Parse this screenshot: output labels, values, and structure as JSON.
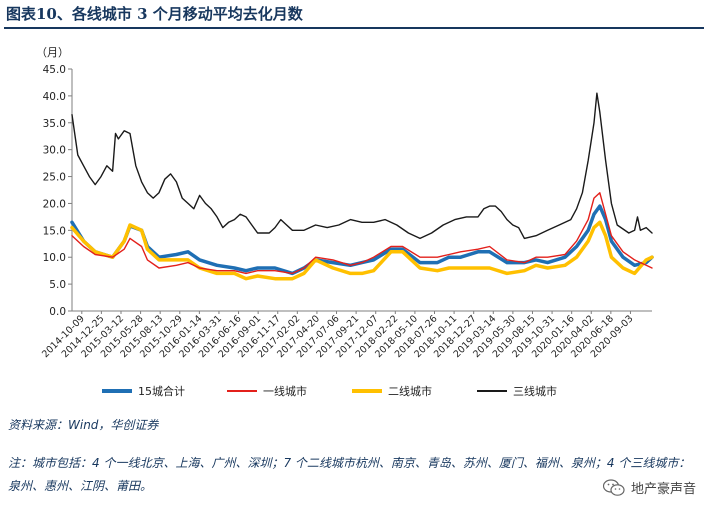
{
  "header": {
    "title": "图表10、各线城市 3 个月移动平均去化月数"
  },
  "chart_data": {
    "type": "line",
    "title": "图表10、各线城市 3 个月移动平均去化月数",
    "ylabel": "（月）",
    "xlabel": "",
    "ylim": [
      0,
      45
    ],
    "y_ticks": [
      "0.0",
      "5.0",
      "10.0",
      "15.0",
      "20.0",
      "25.0",
      "30.0",
      "35.0",
      "40.0",
      "45.0"
    ],
    "grid": false,
    "legend_position": "bottom",
    "x_start": "2014-10-09",
    "x_end": "2020-11-20",
    "x_tick_labels": [
      "2014-10-09",
      "2014-12-25",
      "2015-03-12",
      "2015-05-28",
      "2015-08-13",
      "2015-10-29",
      "2016-01-14",
      "2016-03-31",
      "2016-06-16",
      "2016-09-01",
      "2016-11-17",
      "2017-02-02",
      "2017-04-20",
      "2017-07-06",
      "2017-09-21",
      "2017-12-07",
      "2018-02-22",
      "2018-05-10",
      "2018-07-26",
      "2018-10-11",
      "2018-12-27",
      "2019-03-14",
      "2019-05-30",
      "2019-08-15",
      "2019-10-31",
      "2020-01-16",
      "2020-04-02",
      "2020-06-18",
      "2020-09-03"
    ],
    "series": [
      {
        "name": "15城合计",
        "color": "#1f6fb4",
        "width": 3.5,
        "points": [
          [
            0,
            16.5
          ],
          [
            0.02,
            13
          ],
          [
            0.04,
            11
          ],
          [
            0.07,
            10
          ],
          [
            0.09,
            13
          ],
          [
            0.1,
            15.8
          ],
          [
            0.12,
            15
          ],
          [
            0.13,
            12
          ],
          [
            0.15,
            10
          ],
          [
            0.18,
            10.5
          ],
          [
            0.2,
            11
          ],
          [
            0.22,
            9.5
          ],
          [
            0.25,
            8.5
          ],
          [
            0.28,
            8
          ],
          [
            0.3,
            7.5
          ],
          [
            0.32,
            8
          ],
          [
            0.35,
            8
          ],
          [
            0.38,
            7
          ],
          [
            0.4,
            8
          ],
          [
            0.42,
            9.5
          ],
          [
            0.45,
            9
          ],
          [
            0.48,
            8.5
          ],
          [
            0.5,
            9
          ],
          [
            0.52,
            9.5
          ],
          [
            0.55,
            11.5
          ],
          [
            0.57,
            11.5
          ],
          [
            0.6,
            9
          ],
          [
            0.63,
            9
          ],
          [
            0.65,
            10
          ],
          [
            0.67,
            10
          ],
          [
            0.7,
            11
          ],
          [
            0.72,
            11
          ],
          [
            0.75,
            9
          ],
          [
            0.78,
            9
          ],
          [
            0.8,
            9.5
          ],
          [
            0.82,
            9
          ],
          [
            0.85,
            10
          ],
          [
            0.87,
            12
          ],
          [
            0.89,
            15
          ],
          [
            0.9,
            18
          ],
          [
            0.91,
            19.5
          ],
          [
            0.92,
            17
          ],
          [
            0.93,
            13
          ],
          [
            0.95,
            10
          ],
          [
            0.97,
            8.5
          ],
          [
            0.99,
            9
          ],
          [
            1,
            10
          ]
        ]
      },
      {
        "name": "一线城市",
        "color": "#e3201b",
        "width": 1.4,
        "points": [
          [
            0,
            14
          ],
          [
            0.02,
            12
          ],
          [
            0.04,
            10.5
          ],
          [
            0.07,
            10
          ],
          [
            0.09,
            11.5
          ],
          [
            0.1,
            13.5
          ],
          [
            0.12,
            12
          ],
          [
            0.13,
            9.5
          ],
          [
            0.15,
            8
          ],
          [
            0.18,
            8.5
          ],
          [
            0.2,
            9
          ],
          [
            0.22,
            8
          ],
          [
            0.25,
            7.5
          ],
          [
            0.28,
            7.5
          ],
          [
            0.3,
            7
          ],
          [
            0.32,
            7.5
          ],
          [
            0.35,
            7.5
          ],
          [
            0.38,
            7
          ],
          [
            0.4,
            8
          ],
          [
            0.42,
            10
          ],
          [
            0.45,
            9.5
          ],
          [
            0.48,
            8.5
          ],
          [
            0.5,
            9
          ],
          [
            0.52,
            10
          ],
          [
            0.55,
            12
          ],
          [
            0.57,
            12
          ],
          [
            0.6,
            10
          ],
          [
            0.63,
            10
          ],
          [
            0.65,
            10.5
          ],
          [
            0.67,
            11
          ],
          [
            0.7,
            11.5
          ],
          [
            0.72,
            12
          ],
          [
            0.75,
            9.5
          ],
          [
            0.78,
            9
          ],
          [
            0.8,
            10
          ],
          [
            0.82,
            10
          ],
          [
            0.85,
            10.5
          ],
          [
            0.87,
            13
          ],
          [
            0.89,
            17
          ],
          [
            0.9,
            21
          ],
          [
            0.91,
            22
          ],
          [
            0.92,
            18
          ],
          [
            0.93,
            14
          ],
          [
            0.95,
            11
          ],
          [
            0.97,
            9.5
          ],
          [
            0.99,
            8.5
          ],
          [
            1,
            8
          ]
        ]
      },
      {
        "name": "二线城市",
        "color": "#ffc000",
        "width": 3.5,
        "points": [
          [
            0,
            15.5
          ],
          [
            0.02,
            13
          ],
          [
            0.04,
            11
          ],
          [
            0.07,
            10
          ],
          [
            0.09,
            13
          ],
          [
            0.1,
            16
          ],
          [
            0.12,
            15
          ],
          [
            0.13,
            11.5
          ],
          [
            0.15,
            9.5
          ],
          [
            0.18,
            9.5
          ],
          [
            0.2,
            9.5
          ],
          [
            0.22,
            8
          ],
          [
            0.25,
            7
          ],
          [
            0.28,
            7
          ],
          [
            0.3,
            6
          ],
          [
            0.32,
            6.5
          ],
          [
            0.35,
            6
          ],
          [
            0.38,
            6
          ],
          [
            0.4,
            7
          ],
          [
            0.42,
            9.5
          ],
          [
            0.45,
            8
          ],
          [
            0.48,
            7
          ],
          [
            0.5,
            7
          ],
          [
            0.52,
            7.5
          ],
          [
            0.55,
            11
          ],
          [
            0.57,
            11
          ],
          [
            0.6,
            8
          ],
          [
            0.63,
            7.5
          ],
          [
            0.65,
            8
          ],
          [
            0.67,
            8
          ],
          [
            0.7,
            8
          ],
          [
            0.72,
            8
          ],
          [
            0.75,
            7
          ],
          [
            0.78,
            7.5
          ],
          [
            0.8,
            8.5
          ],
          [
            0.82,
            8
          ],
          [
            0.85,
            8.5
          ],
          [
            0.87,
            10
          ],
          [
            0.89,
            13
          ],
          [
            0.9,
            15.5
          ],
          [
            0.91,
            16.5
          ],
          [
            0.92,
            14
          ],
          [
            0.93,
            10
          ],
          [
            0.95,
            8
          ],
          [
            0.97,
            7
          ],
          [
            0.99,
            9.5
          ],
          [
            1,
            10
          ]
        ]
      },
      {
        "name": "三线城市",
        "color": "#1a1a1a",
        "width": 1.4,
        "points": [
          [
            0,
            36.5
          ],
          [
            0.01,
            29
          ],
          [
            0.02,
            27
          ],
          [
            0.03,
            25
          ],
          [
            0.04,
            23.5
          ],
          [
            0.05,
            25
          ],
          [
            0.06,
            27
          ],
          [
            0.07,
            26
          ],
          [
            0.075,
            33
          ],
          [
            0.08,
            32
          ],
          [
            0.09,
            33.5
          ],
          [
            0.1,
            33
          ],
          [
            0.11,
            27
          ],
          [
            0.12,
            24
          ],
          [
            0.13,
            22
          ],
          [
            0.14,
            21
          ],
          [
            0.15,
            22
          ],
          [
            0.16,
            24.5
          ],
          [
            0.17,
            25.5
          ],
          [
            0.18,
            24
          ],
          [
            0.19,
            21
          ],
          [
            0.2,
            20
          ],
          [
            0.21,
            19
          ],
          [
            0.22,
            21.5
          ],
          [
            0.23,
            20
          ],
          [
            0.24,
            19
          ],
          [
            0.25,
            17.5
          ],
          [
            0.26,
            15.5
          ],
          [
            0.27,
            16.5
          ],
          [
            0.28,
            17
          ],
          [
            0.29,
            18
          ],
          [
            0.3,
            17.5
          ],
          [
            0.31,
            16
          ],
          [
            0.32,
            14.5
          ],
          [
            0.33,
            14.5
          ],
          [
            0.34,
            14.5
          ],
          [
            0.35,
            15.5
          ],
          [
            0.36,
            17
          ],
          [
            0.37,
            16
          ],
          [
            0.38,
            15
          ],
          [
            0.4,
            15
          ],
          [
            0.42,
            16
          ],
          [
            0.44,
            15.5
          ],
          [
            0.46,
            16
          ],
          [
            0.48,
            17
          ],
          [
            0.5,
            16.5
          ],
          [
            0.52,
            16.5
          ],
          [
            0.54,
            17
          ],
          [
            0.56,
            16
          ],
          [
            0.58,
            14.5
          ],
          [
            0.6,
            13.5
          ],
          [
            0.62,
            14.5
          ],
          [
            0.64,
            16
          ],
          [
            0.66,
            17
          ],
          [
            0.68,
            17.5
          ],
          [
            0.7,
            17.5
          ],
          [
            0.71,
            19
          ],
          [
            0.72,
            19.5
          ],
          [
            0.73,
            19.5
          ],
          [
            0.74,
            18.5
          ],
          [
            0.75,
            17
          ],
          [
            0.76,
            16
          ],
          [
            0.77,
            15.5
          ],
          [
            0.78,
            13.5
          ],
          [
            0.8,
            14
          ],
          [
            0.82,
            15
          ],
          [
            0.84,
            16
          ],
          [
            0.86,
            17
          ],
          [
            0.87,
            19
          ],
          [
            0.88,
            22
          ],
          [
            0.89,
            28
          ],
          [
            0.9,
            35
          ],
          [
            0.905,
            40.5
          ],
          [
            0.91,
            37
          ],
          [
            0.92,
            28
          ],
          [
            0.93,
            20
          ],
          [
            0.94,
            16
          ],
          [
            0.96,
            14.5
          ],
          [
            0.97,
            15
          ],
          [
            0.975,
            17.5
          ],
          [
            0.98,
            15
          ],
          [
            0.99,
            15.5
          ],
          [
            1,
            14.5
          ]
        ]
      }
    ]
  },
  "source": "资料来源：Wind，华创证券",
  "note": "注：城市包括：4 个一线北京、上海、广州、深圳；7 个二线城市杭州、南京、青岛、苏州、厦门、福州、泉州；4 个三线城市：泉州、惠州、江阴、莆田。",
  "watermark": "地产豪声音"
}
